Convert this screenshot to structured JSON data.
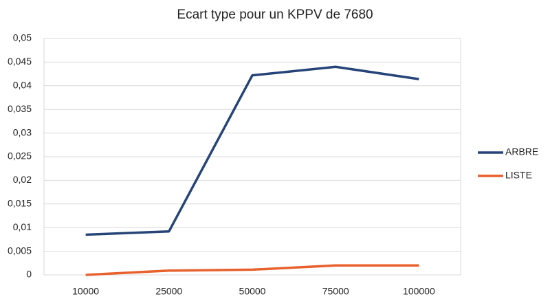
{
  "chart_data": {
    "type": "line",
    "title": "Ecart type pour un KPPV de 7680",
    "categories": [
      "10000",
      "25000",
      "50000",
      "75000",
      "100000"
    ],
    "series": [
      {
        "name": "ARBRE",
        "color": "#264478",
        "values": [
          0.0085,
          0.0092,
          0.0422,
          0.044,
          0.0414
        ]
      },
      {
        "name": "LISTE",
        "color": "#e8602c",
        "values": [
          0,
          0.0009,
          0.0011,
          0.002,
          0.002
        ]
      }
    ],
    "ylim": [
      0,
      0.05
    ],
    "yticks": [
      0,
      {
        "value": 0.005,
        "label": "0,005"
      },
      {
        "value": 0.01,
        "label": "0,01"
      },
      {
        "value": 0.015,
        "label": "0,015"
      },
      {
        "value": 0.02,
        "label": "0,02"
      },
      {
        "value": 0.025,
        "label": "0,025"
      },
      {
        "value": 0.03,
        "label": "0,03"
      },
      {
        "value": 0.035,
        "label": "0,035"
      },
      {
        "value": 0.04,
        "label": "0,04"
      },
      {
        "value": 0.045,
        "label": "0,045"
      },
      {
        "value": 0.05,
        "label": "0,05"
      }
    ],
    "grid": true,
    "legend": "right"
  }
}
